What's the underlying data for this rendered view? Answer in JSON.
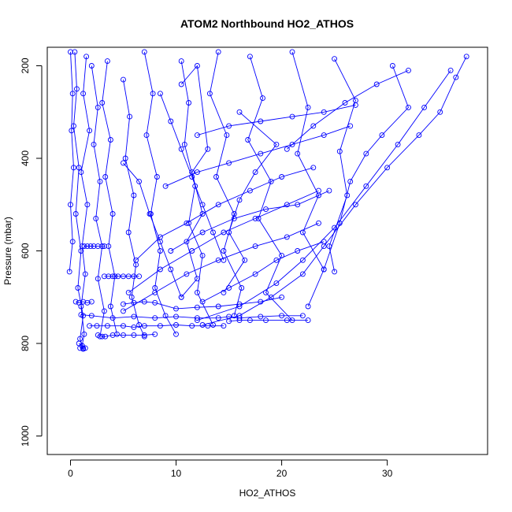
{
  "chart_data": {
    "type": "scatter",
    "title": "ATOM2 Northbound HO2_ATHOS",
    "xlabel": "HO2_ATHOS",
    "ylabel": "Pressure (mbar)",
    "xlim": [
      -2.2,
      39.5
    ],
    "ylim": [
      1040,
      160
    ],
    "y_inverted": true,
    "x_ticks": [
      0,
      10,
      20,
      30
    ],
    "y_ticks": [
      200,
      400,
      600,
      800,
      1000
    ],
    "grid": false,
    "legend": "none",
    "marker": "open-circle",
    "connected": true,
    "color": "#0000ff",
    "series": [
      {
        "points": [
          [
            0.4,
            170
          ],
          [
            0.6,
            250
          ],
          [
            0.3,
            330
          ],
          [
            0.8,
            420
          ],
          [
            0.5,
            520
          ],
          [
            1.0,
            600
          ],
          [
            0.7,
            680
          ],
          [
            1.2,
            740
          ],
          [
            0.9,
            790
          ],
          [
            1.2,
            810
          ]
        ]
      },
      {
        "points": [
          [
            1.5,
            180
          ],
          [
            1.2,
            260
          ],
          [
            1.8,
            340
          ],
          [
            1.0,
            430
          ],
          [
            1.6,
            500
          ],
          [
            1.1,
            590
          ],
          [
            1.4,
            650
          ],
          [
            1.0,
            720
          ],
          [
            1.3,
            780
          ],
          [
            1.1,
            805
          ]
        ]
      },
      {
        "points": [
          [
            2.0,
            200
          ],
          [
            2.6,
            290
          ],
          [
            2.2,
            370
          ],
          [
            2.8,
            450
          ],
          [
            2.4,
            530
          ],
          [
            3.0,
            590
          ],
          [
            2.6,
            660
          ],
          [
            3.2,
            730
          ],
          [
            2.8,
            785
          ]
        ]
      },
      {
        "points": [
          [
            3.5,
            190
          ],
          [
            3.0,
            280
          ],
          [
            3.8,
            360
          ],
          [
            3.3,
            440
          ],
          [
            4.0,
            520
          ],
          [
            3.6,
            590
          ],
          [
            4.2,
            655
          ],
          [
            3.8,
            720
          ],
          [
            4.4,
            780
          ]
        ]
      },
      {
        "points": [
          [
            5.0,
            230
          ],
          [
            5.6,
            310
          ],
          [
            5.2,
            400
          ],
          [
            6.0,
            480
          ],
          [
            5.5,
            560
          ],
          [
            6.2,
            630
          ],
          [
            5.8,
            700
          ],
          [
            6.5,
            760
          ],
          [
            7.0,
            785
          ]
        ]
      },
      {
        "points": [
          [
            7.0,
            170
          ],
          [
            7.8,
            260
          ],
          [
            7.2,
            350
          ],
          [
            8.2,
            440
          ],
          [
            7.6,
            520
          ],
          [
            8.5,
            600
          ],
          [
            8.0,
            680
          ],
          [
            9.0,
            740
          ],
          [
            10.0,
            780
          ]
        ]
      },
      {
        "points": [
          [
            10.5,
            190
          ],
          [
            11.2,
            280
          ],
          [
            10.8,
            370
          ],
          [
            11.8,
            460
          ],
          [
            11.2,
            540
          ],
          [
            12.5,
            610
          ],
          [
            12.0,
            690
          ],
          [
            13.5,
            760
          ]
        ]
      },
      {
        "points": [
          [
            14.0,
            170
          ],
          [
            13.2,
            260
          ],
          [
            14.8,
            350
          ],
          [
            13.8,
            440
          ],
          [
            15.5,
            520
          ],
          [
            14.5,
            600
          ],
          [
            16.2,
            680
          ],
          [
            15.5,
            740
          ]
        ]
      },
      {
        "points": [
          [
            17.0,
            180
          ],
          [
            18.2,
            270
          ],
          [
            16.8,
            360
          ],
          [
            19.0,
            450
          ],
          [
            17.8,
            530
          ],
          [
            20.0,
            610
          ],
          [
            18.5,
            690
          ],
          [
            21.0,
            750
          ]
        ]
      },
      {
        "points": [
          [
            21.0,
            170
          ],
          [
            22.5,
            290
          ],
          [
            21.5,
            390
          ],
          [
            23.5,
            480
          ],
          [
            22.0,
            560
          ],
          [
            24.0,
            640
          ],
          [
            22.5,
            720
          ]
        ]
      },
      {
        "points": [
          [
            25.0,
            185
          ],
          [
            27.0,
            275
          ],
          [
            25.5,
            385
          ],
          [
            26.2,
            480
          ],
          [
            24.5,
            590
          ],
          [
            25.0,
            645
          ]
        ]
      },
      {
        "points": [
          [
            30.5,
            200
          ],
          [
            32.0,
            290
          ],
          [
            29.5,
            350
          ],
          [
            28.0,
            390
          ],
          [
            26.5,
            450
          ],
          [
            25.5,
            540
          ],
          [
            24.0,
            640
          ]
        ]
      },
      {
        "points": [
          [
            37.5,
            180
          ],
          [
            36.5,
            225
          ],
          [
            35.0,
            300
          ],
          [
            33.0,
            350
          ],
          [
            30.0,
            420
          ],
          [
            27.0,
            500
          ],
          [
            24.0,
            590
          ],
          [
            22.0,
            650
          ],
          [
            19.0,
            700
          ],
          [
            16.0,
            740
          ],
          [
            12.5,
            760
          ]
        ]
      },
      {
        "points": [
          [
            36.0,
            210
          ],
          [
            33.5,
            290
          ],
          [
            31.0,
            370
          ],
          [
            28.0,
            460
          ],
          [
            25.0,
            550
          ],
          [
            22.0,
            620
          ],
          [
            19.5,
            670
          ],
          [
            16.0,
            720
          ],
          [
            12.0,
            750
          ]
        ]
      },
      {
        "points": [
          [
            20.0,
            700
          ],
          [
            18.0,
            710
          ],
          [
            16.0,
            715
          ],
          [
            14.0,
            720
          ],
          [
            12.0,
            722
          ],
          [
            10.0,
            725
          ],
          [
            8.0,
            712
          ],
          [
            7.0,
            710
          ],
          [
            6.0,
            712
          ],
          [
            5.0,
            715
          ]
        ]
      },
      {
        "points": [
          [
            22.0,
            740
          ],
          [
            20.0,
            740
          ],
          [
            18.0,
            742
          ],
          [
            16.0,
            745
          ],
          [
            15.0,
            742
          ],
          [
            14.0,
            745
          ],
          [
            12.0,
            745
          ],
          [
            10.0,
            742
          ],
          [
            8.0,
            745
          ],
          [
            6.0,
            742
          ],
          [
            4.0,
            745
          ],
          [
            2.0,
            740
          ],
          [
            1.0,
            738
          ]
        ]
      },
      {
        "points": [
          [
            22.5,
            750
          ],
          [
            20.5,
            750
          ],
          [
            18.5,
            750
          ],
          [
            17.0,
            750
          ],
          [
            16.0,
            750
          ],
          [
            15.0,
            752
          ]
        ]
      },
      {
        "points": [
          [
            14.5,
            762
          ],
          [
            13.0,
            762
          ],
          [
            11.5,
            762
          ],
          [
            10.0,
            760
          ],
          [
            8.5,
            762
          ],
          [
            7.0,
            762
          ],
          [
            6.0,
            765
          ],
          [
            5.0,
            762
          ],
          [
            3.5,
            762
          ],
          [
            2.5,
            762
          ],
          [
            1.8,
            762
          ]
        ]
      },
      {
        "points": [
          [
            8.0,
            780
          ],
          [
            7.0,
            782
          ],
          [
            6.0,
            782
          ],
          [
            5.0,
            782
          ],
          [
            4.0,
            782
          ],
          [
            3.3,
            785
          ],
          [
            3.0,
            785
          ],
          [
            2.6,
            782
          ]
        ]
      },
      {
        "points": [
          [
            6.5,
            655
          ],
          [
            6.0,
            655
          ],
          [
            5.5,
            655
          ],
          [
            5.0,
            655
          ],
          [
            4.5,
            655
          ],
          [
            4.0,
            655
          ],
          [
            3.6,
            655
          ],
          [
            3.2,
            655
          ]
        ]
      },
      {
        "points": [
          [
            3.2,
            590
          ],
          [
            3.0,
            590
          ],
          [
            2.6,
            590
          ],
          [
            2.2,
            590
          ],
          [
            1.9,
            590
          ],
          [
            1.6,
            590
          ],
          [
            1.3,
            590
          ]
        ]
      },
      {
        "points": [
          [
            0.5,
            710
          ],
          [
            0.8,
            712
          ],
          [
            1.2,
            710
          ],
          [
            1.6,
            712
          ],
          [
            2.0,
            710
          ]
        ]
      },
      {
        "points": [
          [
            0.8,
            800
          ],
          [
            1.1,
            805
          ],
          [
            1.4,
            810
          ],
          [
            1.2,
            812
          ],
          [
            0.9,
            810
          ]
        ]
      },
      {
        "points": [
          [
            6.2,
            620
          ],
          [
            8.5,
            570
          ],
          [
            11.0,
            540
          ],
          [
            14.0,
            500
          ],
          [
            17.0,
            470
          ],
          [
            20.0,
            440
          ],
          [
            23.0,
            420
          ]
        ]
      },
      {
        "points": [
          [
            5.5,
            690
          ],
          [
            8.5,
            640
          ],
          [
            11.5,
            600
          ],
          [
            14.5,
            560
          ],
          [
            17.5,
            530
          ],
          [
            20.5,
            500
          ],
          [
            23.5,
            470
          ]
        ]
      },
      {
        "points": [
          [
            5.0,
            730
          ],
          [
            8.0,
            690
          ],
          [
            11.0,
            650
          ],
          [
            14.0,
            620
          ],
          [
            17.5,
            590
          ],
          [
            20.5,
            570
          ],
          [
            23.5,
            540
          ]
        ]
      },
      {
        "points": [
          [
            9.5,
            600
          ],
          [
            12.5,
            560
          ],
          [
            15.5,
            530
          ],
          [
            18.5,
            510
          ],
          [
            21.5,
            500
          ],
          [
            24.5,
            470
          ]
        ]
      },
      {
        "points": [
          [
            12.5,
            710
          ],
          [
            15.0,
            680
          ],
          [
            17.5,
            650
          ],
          [
            19.5,
            620
          ],
          [
            21.5,
            600
          ],
          [
            24.0,
            580
          ]
        ]
      },
      {
        "points": [
          [
            10.5,
            240
          ],
          [
            12.0,
            200
          ],
          [
            13.0,
            380
          ],
          [
            11.5,
            430
          ],
          [
            12.5,
            520
          ],
          [
            11.0,
            580
          ],
          [
            12.0,
            660
          ],
          [
            10.5,
            700
          ]
        ]
      },
      {
        "points": [
          [
            16.0,
            300
          ],
          [
            19.5,
            370
          ],
          [
            17.5,
            430
          ],
          [
            16.0,
            490
          ],
          [
            15.0,
            560
          ],
          [
            16.5,
            620
          ],
          [
            14.5,
            690
          ]
        ]
      },
      {
        "points": [
          [
            5.0,
            410
          ],
          [
            6.5,
            450
          ],
          [
            7.5,
            520
          ],
          [
            8.5,
            580
          ],
          [
            9.5,
            640
          ],
          [
            10.5,
            700
          ]
        ]
      },
      {
        "points": [
          [
            8.5,
            260
          ],
          [
            9.5,
            320
          ],
          [
            10.5,
            380
          ],
          [
            11.5,
            440
          ],
          [
            12.5,
            500
          ],
          [
            13.5,
            560
          ],
          [
            14.5,
            620
          ]
        ]
      },
      {
        "points": [
          [
            20.5,
            380
          ],
          [
            23.0,
            330
          ],
          [
            26.0,
            280
          ],
          [
            29.0,
            240
          ],
          [
            32.0,
            210
          ]
        ]
      },
      {
        "points": [
          [
            12.0,
            350
          ],
          [
            15.0,
            330
          ],
          [
            18.0,
            320
          ],
          [
            21.0,
            310
          ],
          [
            24.0,
            300
          ],
          [
            27.0,
            285
          ]
        ]
      },
      {
        "points": [
          [
            9.0,
            460
          ],
          [
            12.0,
            430
          ],
          [
            15.0,
            410
          ],
          [
            18.0,
            390
          ],
          [
            21.0,
            370
          ],
          [
            24.0,
            350
          ],
          [
            26.5,
            330
          ]
        ]
      },
      {
        "points": [
          [
            -0.1,
            645
          ],
          [
            0.2,
            580
          ],
          [
            0.0,
            500
          ],
          [
            0.3,
            420
          ],
          [
            0.1,
            340
          ],
          [
            0.2,
            260
          ],
          [
            0.0,
            170
          ]
        ]
      }
    ]
  }
}
